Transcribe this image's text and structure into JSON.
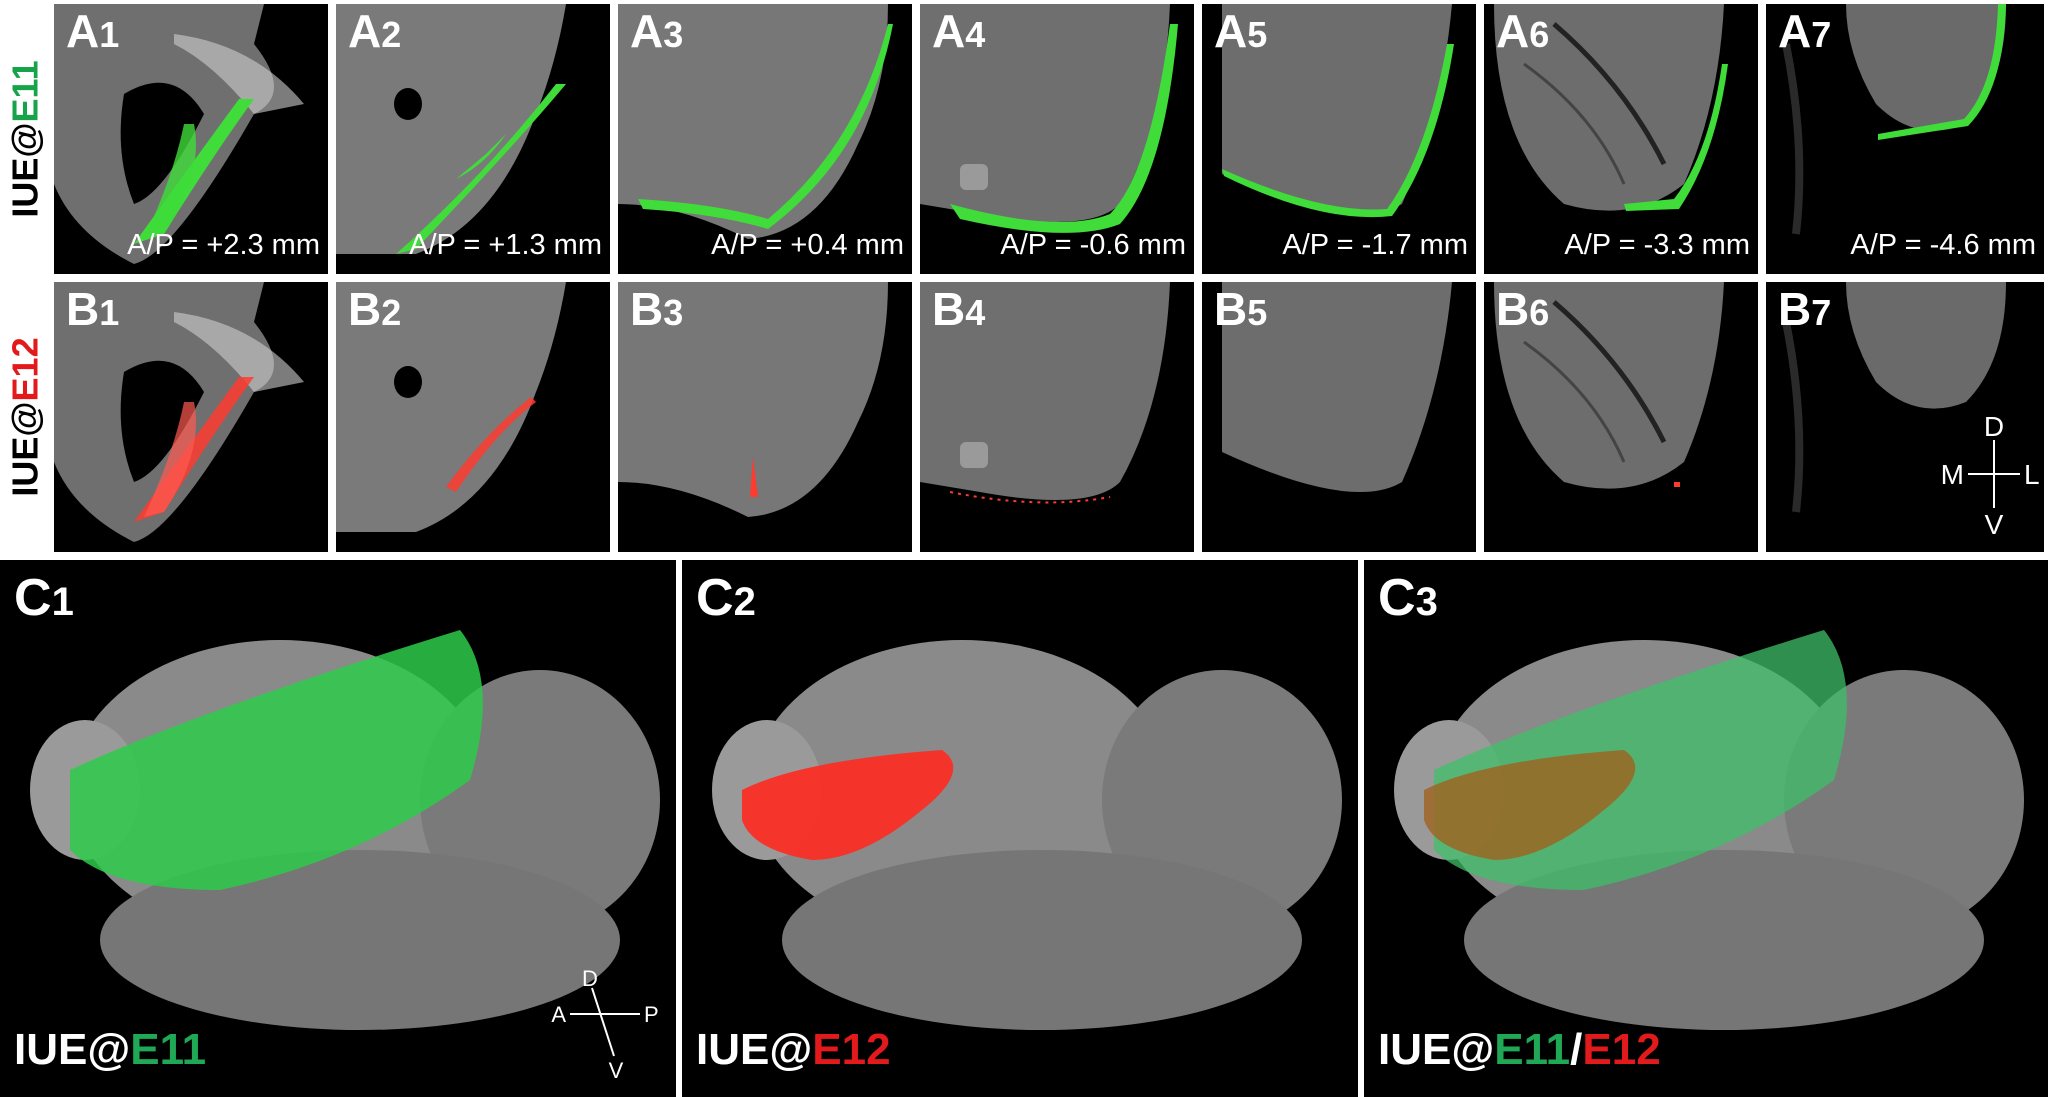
{
  "row_labels": {
    "a": {
      "prefix": "IUE@",
      "stage": "E11",
      "stage_color": "#17a34a"
    },
    "b": {
      "prefix": "IUE@",
      "stage": "E12",
      "stage_color": "#e31a1c"
    }
  },
  "colors": {
    "green": "#3fdc3a",
    "red": "#ff3b30",
    "tissue": "#7a7a7a",
    "background": "#000000"
  },
  "row_a": [
    {
      "letter": "A",
      "num": "1",
      "ap": "A/P = +2.3 mm"
    },
    {
      "letter": "A",
      "num": "2",
      "ap": "A/P = +1.3 mm"
    },
    {
      "letter": "A",
      "num": "3",
      "ap": "A/P = +0.4 mm"
    },
    {
      "letter": "A",
      "num": "4",
      "ap": "A/P = -0.6 mm"
    },
    {
      "letter": "A",
      "num": "5",
      "ap": "A/P = -1.7 mm"
    },
    {
      "letter": "A",
      "num": "6",
      "ap": "A/P = -3.3 mm"
    },
    {
      "letter": "A",
      "num": "7",
      "ap": "A/P = -4.6 mm"
    }
  ],
  "row_b": [
    {
      "letter": "B",
      "num": "1"
    },
    {
      "letter": "B",
      "num": "2"
    },
    {
      "letter": "B",
      "num": "3"
    },
    {
      "letter": "B",
      "num": "4"
    },
    {
      "letter": "B",
      "num": "5"
    },
    {
      "letter": "B",
      "num": "6"
    },
    {
      "letter": "B",
      "num": "7"
    }
  ],
  "row_b_axes": {
    "d": "D",
    "v": "V",
    "m": "M",
    "l": "L"
  },
  "row_c": [
    {
      "letter": "C",
      "num": "1",
      "prefix": "IUE@",
      "s1": "E11",
      "sep": "",
      "s2": ""
    },
    {
      "letter": "C",
      "num": "2",
      "prefix": "IUE@",
      "s1": "E12",
      "sep": "",
      "s2": ""
    },
    {
      "letter": "C",
      "num": "3",
      "prefix": "IUE@",
      "s1": "E11",
      "sep": "/",
      "s2": "E12"
    }
  ],
  "row_c_axes": {
    "d": "D",
    "v": "V",
    "a": "A",
    "p": "P"
  }
}
